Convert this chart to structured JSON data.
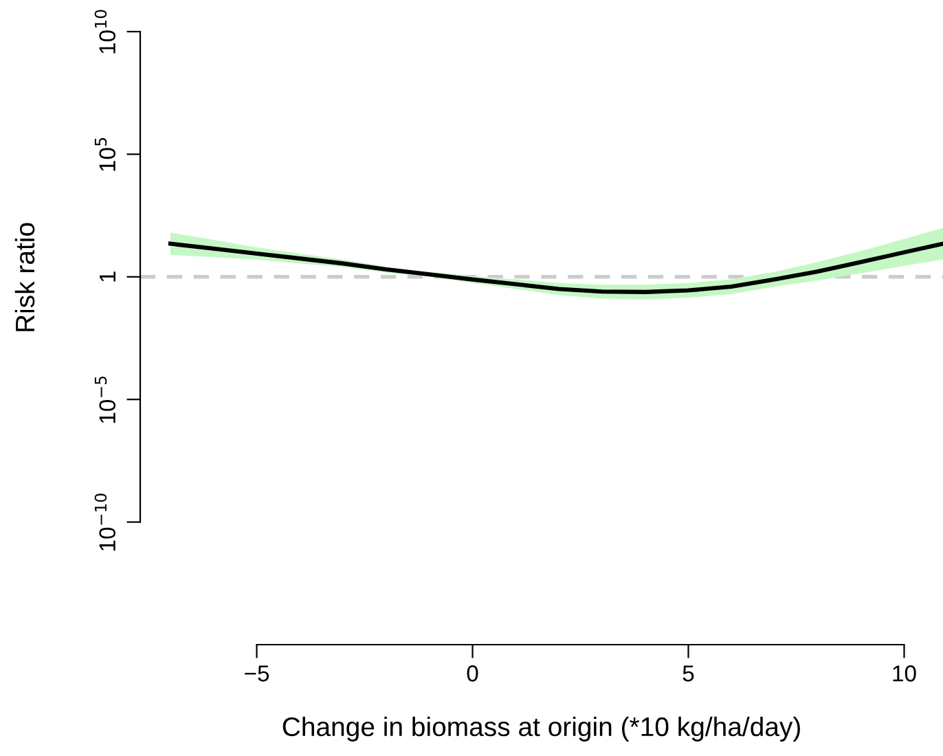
{
  "chart_data": {
    "type": "line",
    "xlabel": "Change in biomass at origin (*10 kg/ha/day)",
    "ylabel": "Risk ratio",
    "log": "y",
    "grid": false,
    "xlim": [
      -7.7,
      10.9
    ],
    "ylim": [
      1e-15,
      10000000000.0
    ],
    "xticks": [
      -5,
      0,
      5,
      10
    ],
    "yticks": [
      {
        "value": 1e-10,
        "label": "10$^{−10}$"
      },
      {
        "value": 1e-05,
        "label": "10$^{−5}$"
      },
      {
        "value": 1,
        "label": "1"
      },
      {
        "value": 100000.0,
        "label": "10$^{5}$"
      },
      {
        "value": 10000000000.0,
        "label": "10$^{10}$"
      }
    ],
    "series": [
      {
        "color": "#000000",
        "line_style": "solid",
        "marker": "none",
        "x": [
          -7,
          -6,
          -5,
          -4,
          -3,
          -2,
          -1,
          0,
          1,
          2,
          3,
          4,
          5,
          6,
          7,
          8,
          9,
          10,
          10.9
        ],
        "values": [
          22.4,
          14.1,
          8.9,
          5.6,
          3.5,
          2.0,
          1.26,
          0.78,
          0.5,
          0.32,
          0.25,
          0.24,
          0.28,
          0.4,
          0.79,
          1.66,
          4.0,
          10,
          22.4
        ],
        "lower": [
          7.9,
          6.3,
          5.0,
          3.5,
          2.5,
          1.5,
          1.0,
          0.56,
          0.32,
          0.18,
          0.13,
          0.12,
          0.14,
          0.2,
          0.4,
          0.71,
          1.4,
          2.8,
          5.0
        ],
        "upper": [
          63,
          32,
          15.8,
          8.9,
          5.0,
          2.6,
          1.6,
          1.07,
          0.79,
          0.56,
          0.48,
          0.48,
          0.56,
          0.79,
          1.6,
          4.0,
          11.2,
          35,
          100
        ]
      }
    ],
    "ref_lines": [
      {
        "axis": "y",
        "value": 1,
        "color": "#cccccc",
        "line_style": "dashed"
      }
    ]
  }
}
